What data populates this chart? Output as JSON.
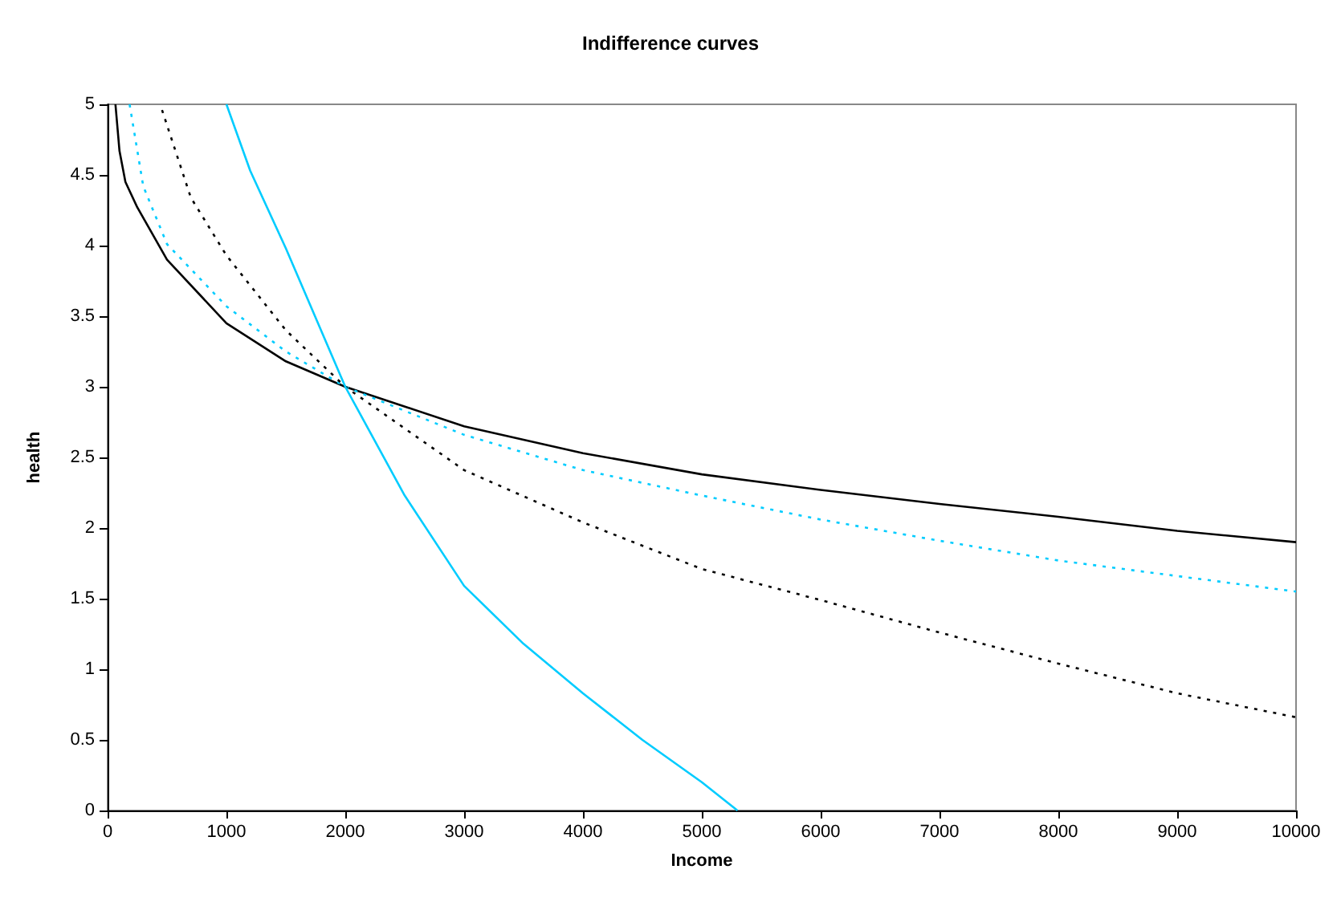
{
  "chart_data": {
    "type": "line",
    "title": "Indifference curves",
    "xlabel": "Income",
    "ylabel": "health",
    "xlim": [
      0,
      10000
    ],
    "ylim": [
      0,
      5
    ],
    "xticks": [
      0,
      1000,
      2000,
      3000,
      4000,
      5000,
      6000,
      7000,
      8000,
      9000,
      10000
    ],
    "yticks": [
      0,
      0.5,
      1,
      1.5,
      2,
      2.5,
      3,
      3.5,
      4,
      4.5,
      5
    ],
    "marker": "none",
    "series": [
      {
        "color": "#000000",
        "line_style": "solid",
        "x": [
          66,
          100,
          150,
          250,
          500,
          1000,
          1500,
          2000,
          3000,
          4000,
          5000,
          6000,
          7000,
          8000,
          9000,
          10000
        ],
        "values": [
          5,
          4.67,
          4.45,
          4.27,
          3.9,
          3.45,
          3.18,
          3,
          2.72,
          2.53,
          2.38,
          2.27,
          2.17,
          2.08,
          1.98,
          1.9
        ]
      },
      {
        "color": "#00ccff",
        "line_style": "dotted",
        "x": [
          185,
          300,
          500,
          1000,
          1500,
          2000,
          3000,
          4000,
          5000,
          6000,
          7000,
          8000,
          9000,
          10000
        ],
        "values": [
          5,
          4.42,
          4.01,
          3.57,
          3.25,
          3,
          2.66,
          2.41,
          2.23,
          2.06,
          1.91,
          1.77,
          1.66,
          1.55
        ]
      },
      {
        "color": "#000000",
        "line_style": "dotted",
        "x": [
          458,
          700,
          1000,
          1500,
          2000,
          3000,
          4000,
          5000,
          6000,
          7000,
          8000,
          9000,
          10000
        ],
        "values": [
          4.96,
          4.34,
          3.93,
          3.4,
          3,
          2.41,
          2.04,
          1.71,
          1.49,
          1.26,
          1.04,
          0.83,
          0.66
        ]
      },
      {
        "color": "#00ccff",
        "line_style": "solid",
        "x": [
          1000,
          1200,
          1500,
          2000,
          2500,
          3000,
          3500,
          4000,
          4500,
          5000,
          5300
        ],
        "values": [
          5,
          4.53,
          3.98,
          3,
          2.23,
          1.59,
          1.18,
          0.83,
          0.5,
          0.2,
          0
        ]
      }
    ]
  }
}
